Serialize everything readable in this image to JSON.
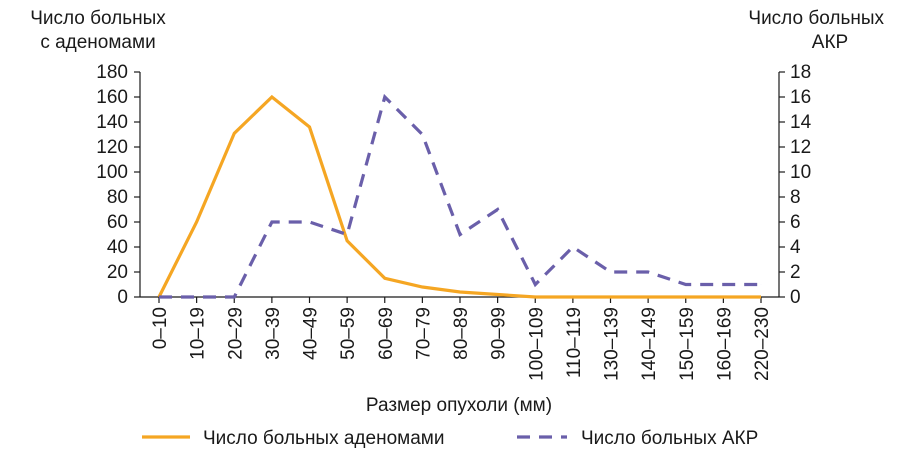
{
  "chart_data": {
    "type": "line",
    "xlabel": "Размер опухоли (мм)",
    "ylabel_left": [
      "Число больных",
      "с аденомами"
    ],
    "ylabel_right": [
      "Число больных",
      "АКР"
    ],
    "categories": [
      "0–10",
      "10–19",
      "20–29",
      "30–39",
      "40–49",
      "50–59",
      "60–69",
      "70–79",
      "80–89",
      "90–99",
      "100–109",
      "110–119",
      "130–139",
      "140–149",
      "150–159",
      "160–169",
      "220–230"
    ],
    "y_left": {
      "min": 0,
      "max": 180,
      "step": 20,
      "ticks": [
        "0",
        "20",
        "40",
        "60",
        "80",
        "100",
        "120",
        "140",
        "160",
        "180"
      ]
    },
    "y_right": {
      "min": 0,
      "max": 18,
      "step": 2,
      "ticks": [
        "0",
        "2",
        "4",
        "6",
        "8",
        "10",
        "12",
        "14",
        "16",
        "18"
      ]
    },
    "series": [
      {
        "name": "Число больных аденомами",
        "axis": "left",
        "style": "solid",
        "color": "#F5A623",
        "values": [
          0,
          60,
          131,
          160,
          136,
          45,
          15,
          8,
          4,
          2,
          0,
          0,
          0,
          0,
          0,
          0,
          0
        ]
      },
      {
        "name": "Число больных АКР",
        "axis": "right",
        "style": "dashed",
        "color": "#6A5FAA",
        "values": [
          0,
          0,
          0,
          6,
          6,
          5,
          16,
          13,
          5,
          7,
          1,
          4,
          2,
          2,
          1,
          1,
          1
        ]
      }
    ],
    "legend": "bottom",
    "grid": false
  }
}
